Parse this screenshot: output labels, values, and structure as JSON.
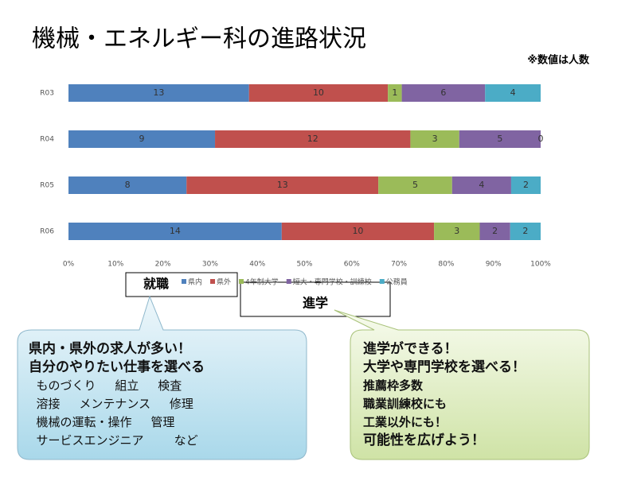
{
  "chart_data": {
    "type": "bar",
    "title": "機械・エネルギー科の進路状況",
    "note": "※数値は人数",
    "categories": [
      "R03",
      "R04",
      "R05",
      "R06"
    ],
    "series": [
      {
        "name": "県内",
        "color": "#4f81bd",
        "values": [
          13,
          9,
          8,
          14
        ]
      },
      {
        "name": "県外",
        "color": "#c0504d",
        "values": [
          10,
          12,
          13,
          10
        ]
      },
      {
        "name": "4年制大学",
        "color": "#9bbb59",
        "values": [
          1,
          3,
          5,
          3
        ]
      },
      {
        "name": "短大・専門学校・訓練校",
        "color": "#8064a2",
        "values": [
          6,
          5,
          4,
          2
        ]
      },
      {
        "name": "公務員",
        "color": "#4bacc6",
        "values": [
          4,
          0,
          2,
          2
        ]
      }
    ],
    "xlim": [
      0,
      100
    ],
    "xticks": [
      {
        "value": 0,
        "label": "0%"
      },
      {
        "value": 10,
        "label": "10%"
      },
      {
        "value": 20,
        "label": "20%"
      },
      {
        "value": 30,
        "label": "30%"
      },
      {
        "value": 40,
        "label": "40%"
      },
      {
        "value": 50,
        "label": "50%"
      },
      {
        "value": 60,
        "label": "60%"
      },
      {
        "value": 70,
        "label": "70%"
      },
      {
        "value": 80,
        "label": "80%"
      },
      {
        "value": 90,
        "label": "90%"
      },
      {
        "value": 100,
        "label": "100%"
      }
    ],
    "stacked": "percent"
  },
  "groups": [
    "就職",
    "進学"
  ],
  "callouts": [
    {
      "lines": [
        "県内・県外の求人が多い！",
        "自分のやりたい仕事を選べる",
        "  ものづくり     組立     検査",
        "  溶接     メンテナンス     修理",
        "  機械の運転・操作     管理",
        "  サービスエンジニア        など"
      ]
    },
    {
      "lines": [
        "進学ができる！",
        "大学や専門学校を選べる！",
        "推薦枠多数",
        "職業訓練校にも",
        "工業以外にも！",
        "可能性を広げよう！"
      ]
    }
  ]
}
